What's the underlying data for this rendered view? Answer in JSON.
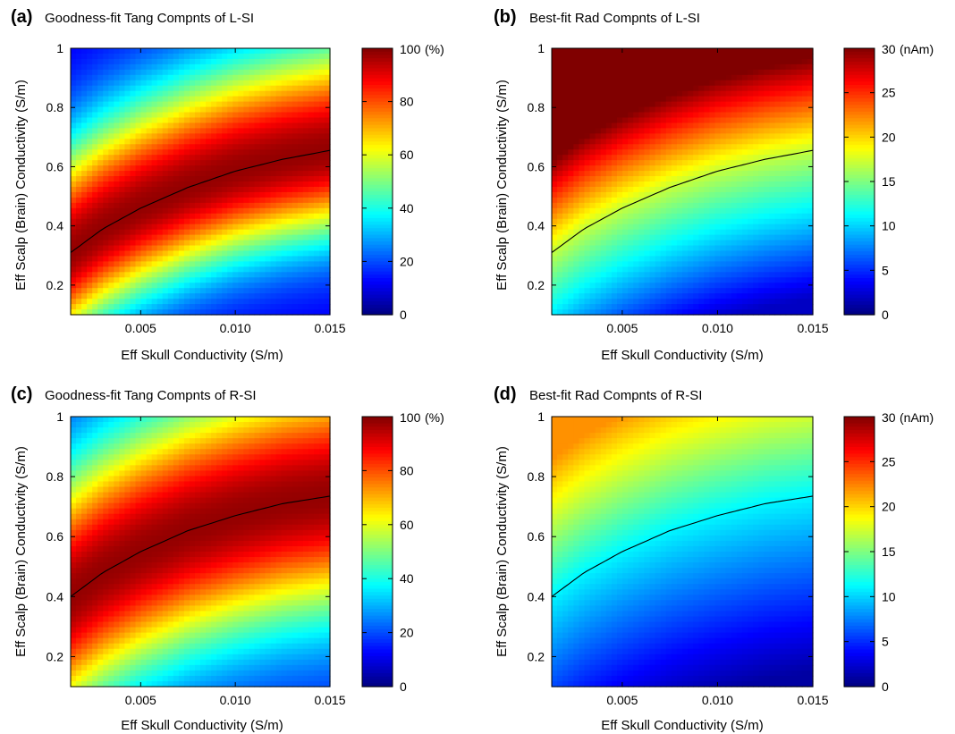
{
  "figure": {
    "panels": [
      {
        "letter": "(a)",
        "title": "Goodness-fit Tang Compnts of L-SI",
        "colorbar_unit": "(%)",
        "colorbar_ticks": [
          "0",
          "20",
          "40",
          "60",
          "80",
          "100"
        ],
        "xlabel": "Eff Skull Conductivity (S/m)",
        "ylabel": "Eff Scalp (Brain) Conductivity (S/m)"
      },
      {
        "letter": "(b)",
        "title": "Best-fit Rad Compnts of L-SI",
        "colorbar_unit": "(nAm)",
        "colorbar_ticks": [
          "0",
          "5",
          "10",
          "15",
          "20",
          "25",
          "30"
        ],
        "xlabel": "Eff Skull Conductivity (S/m)",
        "ylabel": "Eff Scalp (Brain) Conductivity (S/m)"
      },
      {
        "letter": "(c)",
        "title": "Goodness-fit Tang Compnts of R-SI",
        "colorbar_unit": "(%)",
        "colorbar_ticks": [
          "0",
          "20",
          "40",
          "60",
          "80",
          "100"
        ],
        "xlabel": "Eff Skull Conductivity (S/m)",
        "ylabel": "Eff Scalp (Brain) Conductivity (S/m)"
      },
      {
        "letter": "(d)",
        "title": "Best-fit Rad Compnts of R-SI",
        "colorbar_unit": "(nAm)",
        "colorbar_ticks": [
          "0",
          "5",
          "10",
          "15",
          "20",
          "25",
          "30"
        ],
        "xlabel": "Eff Skull Conductivity (S/m)",
        "ylabel": "Eff Scalp (Brain) Conductivity (S/m)"
      }
    ]
  },
  "chart_data": [
    {
      "type": "heatmap",
      "title": "Goodness-fit Tang Compnts of L-SI",
      "xlabel": "Eff Skull Conductivity (S/m)",
      "ylabel": "Eff Scalp (Brain) Conductivity (S/m)",
      "x_ticks": [
        "0.005",
        "0.010",
        "0.015"
      ],
      "y_ticks": [
        "0.2",
        "0.4",
        "0.6",
        "0.8",
        "1"
      ],
      "xlim": [
        0.0013,
        0.015
      ],
      "ylim": [
        0.1,
        1.0
      ],
      "colorbar": {
        "label": "(%)",
        "range": [
          0,
          100
        ],
        "colormap": "jet"
      },
      "best_fit_curve": {
        "x": [
          0.0013,
          0.003,
          0.005,
          0.0075,
          0.01,
          0.0125,
          0.015
        ],
        "y": [
          0.31,
          0.39,
          0.46,
          0.53,
          0.585,
          0.625,
          0.655
        ]
      },
      "value_model": {
        "kind": "goodness",
        "peak": 98,
        "width_below": 0.21,
        "width_above": 0.26,
        "low_value": 10
      }
    },
    {
      "type": "heatmap",
      "title": "Best-fit Rad Compnts of L-SI",
      "xlabel": "Eff Skull Conductivity (S/m)",
      "ylabel": "Eff Scalp (Brain) Conductivity (S/m)",
      "x_ticks": [
        "0.005",
        "0.010",
        "0.015"
      ],
      "y_ticks": [
        "0.2",
        "0.4",
        "0.6",
        "0.8",
        "1"
      ],
      "xlim": [
        0.0013,
        0.015
      ],
      "ylim": [
        0.1,
        1.0
      ],
      "colorbar": {
        "label": "(nAm)",
        "range": [
          0,
          30
        ],
        "colormap": "jet"
      },
      "best_fit_curve": {
        "x": [
          0.0013,
          0.003,
          0.005,
          0.0075,
          0.01,
          0.0125,
          0.015
        ],
        "y": [
          0.31,
          0.39,
          0.46,
          0.53,
          0.585,
          0.625,
          0.655
        ]
      },
      "value_model": {
        "kind": "radial",
        "value_at_curve": 17,
        "slope_above": 42,
        "slope_below": 30,
        "max": 30,
        "min": 2
      }
    },
    {
      "type": "heatmap",
      "title": "Goodness-fit Tang Compnts of R-SI",
      "xlabel": "Eff Skull Conductivity (S/m)",
      "ylabel": "Eff Scalp (Brain) Conductivity (S/m)",
      "x_ticks": [
        "0.005",
        "0.010",
        "0.015"
      ],
      "y_ticks": [
        "0.2",
        "0.4",
        "0.6",
        "0.8",
        "1"
      ],
      "xlim": [
        0.0013,
        0.015
      ],
      "ylim": [
        0.1,
        1.0
      ],
      "colorbar": {
        "label": "(%)",
        "range": [
          0,
          100
        ],
        "colormap": "jet"
      },
      "best_fit_curve": {
        "x": [
          0.0013,
          0.003,
          0.005,
          0.0075,
          0.01,
          0.0125,
          0.015
        ],
        "y": [
          0.4,
          0.48,
          0.55,
          0.62,
          0.67,
          0.71,
          0.735
        ]
      },
      "value_model": {
        "kind": "goodness",
        "peak": 98,
        "width_below": 0.28,
        "width_above": 0.3,
        "low_value": 14
      }
    },
    {
      "type": "heatmap",
      "title": "Best-fit Rad Compnts of R-SI",
      "xlabel": "Eff Skull Conductivity (S/m)",
      "ylabel": "Eff Scalp (Brain) Conductivity (S/m)",
      "x_ticks": [
        "0.005",
        "0.010",
        "0.015"
      ],
      "y_ticks": [
        "0.2",
        "0.4",
        "0.6",
        "0.8",
        "1"
      ],
      "xlim": [
        0.0013,
        0.015
      ],
      "ylim": [
        0.1,
        1.0
      ],
      "colorbar": {
        "label": "(nAm)",
        "range": [
          0,
          30
        ],
        "colormap": "jet"
      },
      "best_fit_curve": {
        "x": [
          0.0013,
          0.003,
          0.005,
          0.0075,
          0.01,
          0.0125,
          0.015
        ],
        "y": [
          0.4,
          0.48,
          0.55,
          0.62,
          0.67,
          0.71,
          0.735
        ]
      },
      "value_model": {
        "kind": "radial",
        "value_at_curve": 11,
        "slope_above": 24,
        "slope_below": 17,
        "max": 22,
        "min": 1
      }
    }
  ]
}
